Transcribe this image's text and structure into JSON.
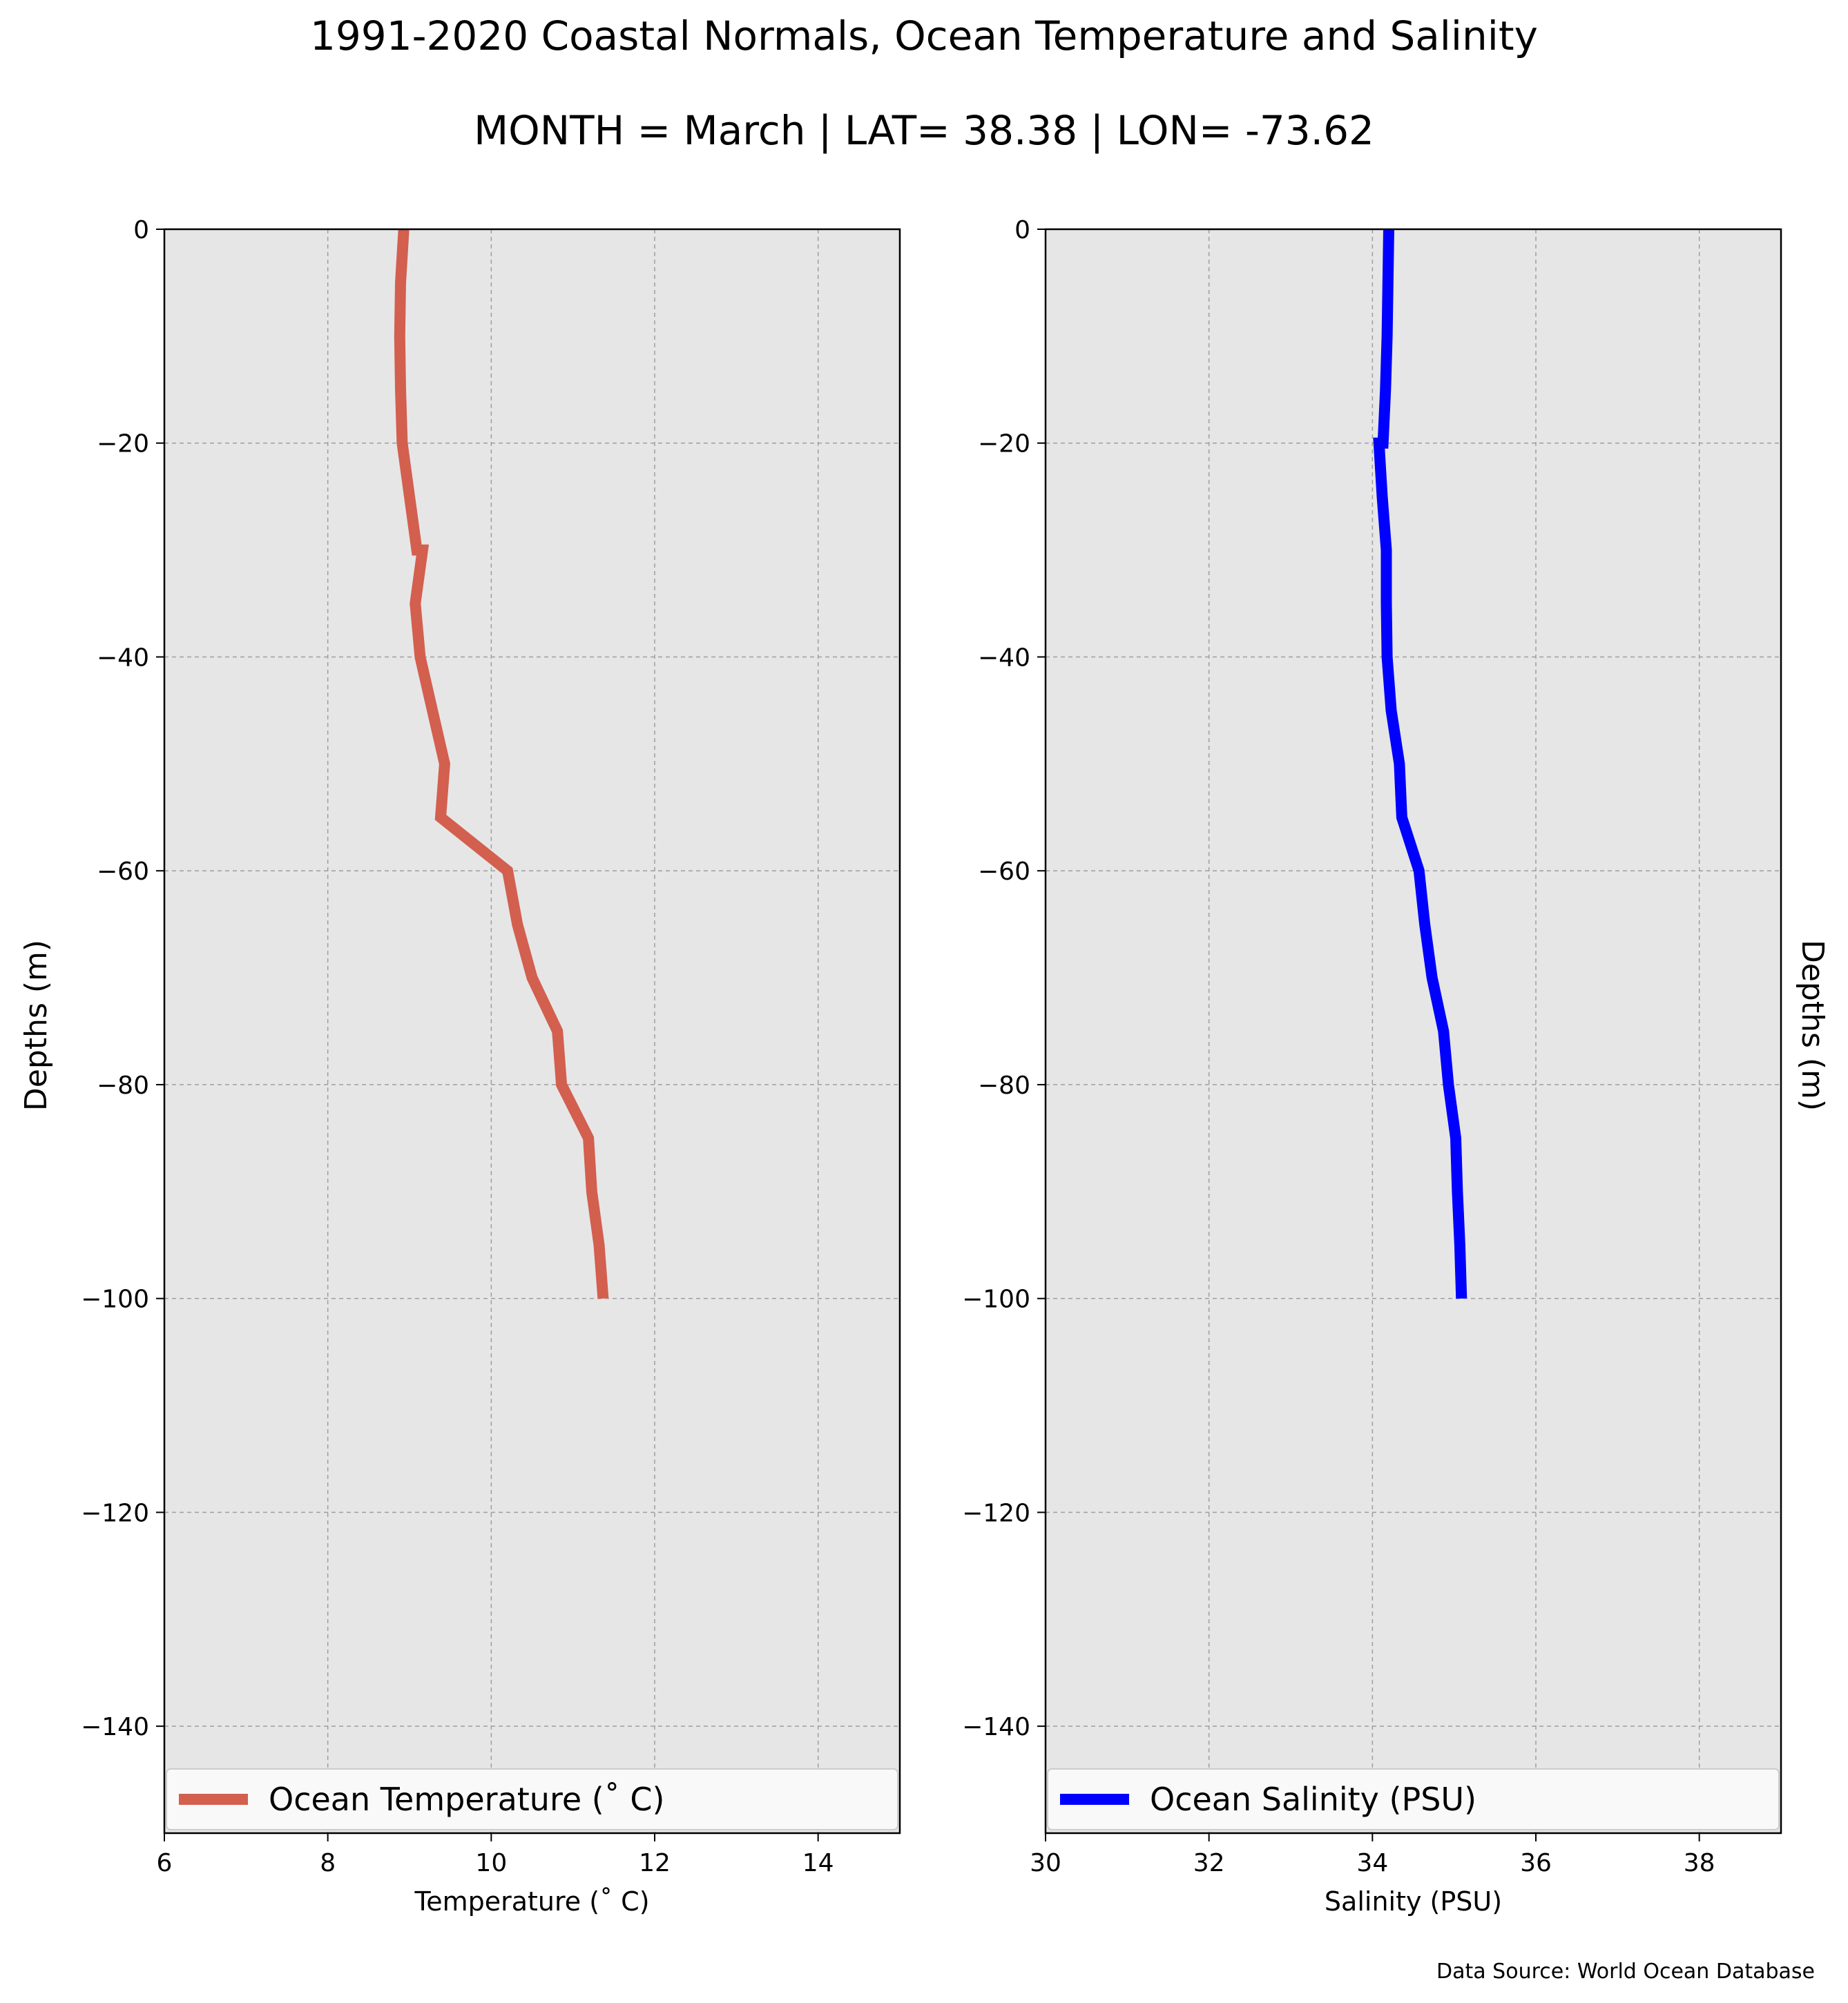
{
  "title": "1991-2020 Coastal Normals, Ocean Temperature and Salinity",
  "subtitle": "MONTH = March | LAT= 38.38 | LON= -73.62",
  "source": "Data Source: World Ocean Database",
  "colors": {
    "temperature": "#d35f4f",
    "salinity": "#0000ff",
    "panel_bg": "#e6e6e6",
    "grid": "#9e9e9e"
  },
  "chart_data": [
    {
      "type": "line",
      "xlabel": "Temperature (˚ C)",
      "ylabel": "Depths (m)",
      "xlim": [
        6,
        15
      ],
      "ylim": [
        -150,
        0
      ],
      "xticks": [
        6,
        8,
        10,
        12,
        14
      ],
      "yticks": [
        0,
        -20,
        -40,
        -60,
        -80,
        -100,
        -120,
        -140
      ],
      "grid": true,
      "legend_position": "bottom",
      "series": [
        {
          "name": "Ocean Temperature (˚ C)",
          "color": "#d35f4f",
          "x": [
            8.93,
            8.89,
            8.88,
            8.89,
            8.91,
            9.0,
            9.09,
            9.16,
            9.07,
            9.13,
            9.28,
            9.43,
            9.38,
            10.2,
            10.32,
            10.5,
            10.81,
            10.86,
            11.19,
            11.23,
            11.32,
            11.37
          ],
          "y": [
            0,
            -5,
            -10,
            -15,
            -20,
            -25,
            -30,
            -30,
            -35,
            -40,
            -45,
            -50,
            -55,
            -60,
            -65,
            -70,
            -75,
            -80,
            -85,
            -90,
            -95,
            -100
          ]
        }
      ]
    },
    {
      "type": "line",
      "xlabel": "Salinity (PSU)",
      "ylabel": "Depths (m)",
      "xlim": [
        30,
        39
      ],
      "ylim": [
        -150,
        0
      ],
      "xticks": [
        30,
        32,
        34,
        36,
        38
      ],
      "yticks": [
        0,
        -20,
        -40,
        -60,
        -80,
        -100,
        -120,
        -140
      ],
      "grid": true,
      "legend_position": "bottom",
      "series": [
        {
          "name": "Ocean Salinity (PSU)",
          "color": "#0000ff",
          "x": [
            34.2,
            34.19,
            34.18,
            34.16,
            34.13,
            34.08,
            34.12,
            34.17,
            34.17,
            34.18,
            34.23,
            34.33,
            34.36,
            34.57,
            34.64,
            34.73,
            34.87,
            34.93,
            35.02,
            35.04,
            35.07,
            35.09
          ],
          "y": [
            0,
            -5,
            -10,
            -15,
            -20,
            -20,
            -25,
            -30,
            -35,
            -40,
            -45,
            -50,
            -55,
            -60,
            -65,
            -70,
            -75,
            -80,
            -85,
            -90,
            -95,
            -100
          ]
        }
      ]
    }
  ]
}
